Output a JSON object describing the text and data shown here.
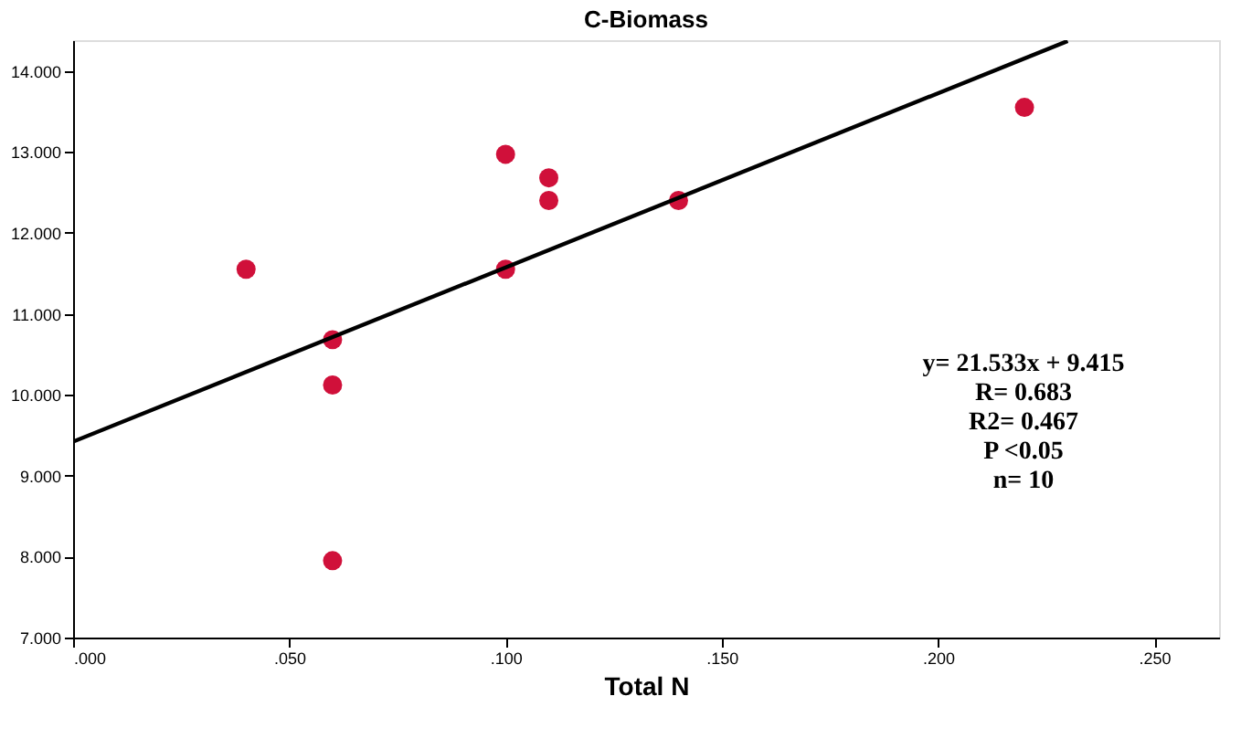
{
  "chart_data": {
    "type": "scatter",
    "title": "C-Biomass",
    "xlabel": "Total N",
    "xlim": [
      0,
      0.265
    ],
    "ylim": [
      7,
      14.38
    ],
    "xticks": [
      {
        "value": 0,
        "label": ".000"
      },
      {
        "value": 0.05,
        "label": ".050"
      },
      {
        "value": 0.1,
        "label": ".100"
      },
      {
        "value": 0.15,
        "label": ".150"
      },
      {
        "value": 0.2,
        "label": ".200"
      },
      {
        "value": 0.25,
        "label": ".250"
      }
    ],
    "yticks": [
      {
        "value": 7,
        "label": "7.000"
      },
      {
        "value": 8,
        "label": "8.000"
      },
      {
        "value": 9,
        "label": "9.000"
      },
      {
        "value": 10,
        "label": "10.000"
      },
      {
        "value": 11,
        "label": "11.000"
      },
      {
        "value": 12,
        "label": "12.000"
      },
      {
        "value": 13,
        "label": "13.000"
      },
      {
        "value": 14,
        "label": "14.000"
      }
    ],
    "grid": false,
    "series": [
      {
        "marker": "circle",
        "color": "#d0103a",
        "x": [
          0.04,
          0.06,
          0.06,
          0.06,
          0.1,
          0.1,
          0.11,
          0.11,
          0.14,
          0.22
        ],
        "values": [
          11.55,
          10.68,
          10.12,
          7.95,
          12.97,
          11.55,
          12.68,
          12.4,
          12.4,
          13.55
        ]
      },
      {
        "type": "line",
        "color": "#000000",
        "line_style": "solid",
        "x": [
          0,
          0.23
        ],
        "values": [
          9.42,
          14.37
        ]
      }
    ],
    "annotations": [
      "y= 21.533x + 9.415",
      "R= 0.683",
      "R2= 0.467",
      "P <0.05",
      "n= 10"
    ]
  }
}
